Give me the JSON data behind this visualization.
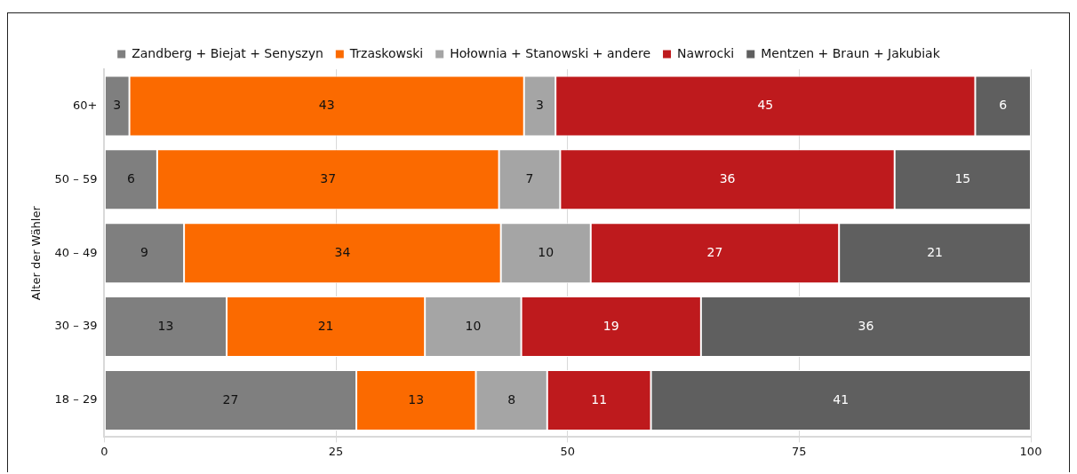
{
  "chart_data": {
    "type": "bar",
    "orientation": "horizontal",
    "stacked": true,
    "ylabel": "Alter der Wähler",
    "categories": [
      "60+",
      "50 – 59",
      "40 – 49",
      "30 – 39",
      "18 – 29"
    ],
    "series": [
      {
        "name": "Zandberg + Biejat + Senyszyn",
        "color": "#7f7f7f",
        "values": [
          2.7,
          5.7,
          8.6,
          13.2,
          27.2
        ],
        "value_labels": [
          "3",
          "6",
          "9",
          "13",
          "27"
        ]
      },
      {
        "name": "Trzaskowski",
        "color": "#fb6a00",
        "values": [
          42.6,
          36.9,
          34.2,
          21.4,
          12.9
        ],
        "value_labels": [
          "43",
          "37",
          "34",
          "21",
          "13"
        ]
      },
      {
        "name": "Hołownia + Stanowski + andere",
        "color": "#a5a5a5",
        "values": [
          3.4,
          6.6,
          9.7,
          10.4,
          7.7
        ],
        "value_labels": [
          "3",
          "7",
          "10",
          "10",
          "8"
        ]
      },
      {
        "name": "Nawrocki",
        "color": "#be1a1d",
        "values": [
          45.3,
          36.1,
          26.8,
          19.4,
          11.2
        ],
        "value_labels": [
          "45",
          "36",
          "27",
          "19",
          "11"
        ]
      },
      {
        "name": "Mentzen + Braun + Jakubiak",
        "color": "#5f5f5f",
        "values": [
          6.0,
          14.7,
          20.7,
          35.6,
          41.0
        ],
        "value_labels": [
          "6",
          "15",
          "21",
          "36",
          "41"
        ]
      }
    ],
    "xlim": [
      0,
      100
    ],
    "xticks": [
      0,
      25,
      50,
      75,
      100
    ],
    "grid": "x",
    "legend": "top"
  }
}
